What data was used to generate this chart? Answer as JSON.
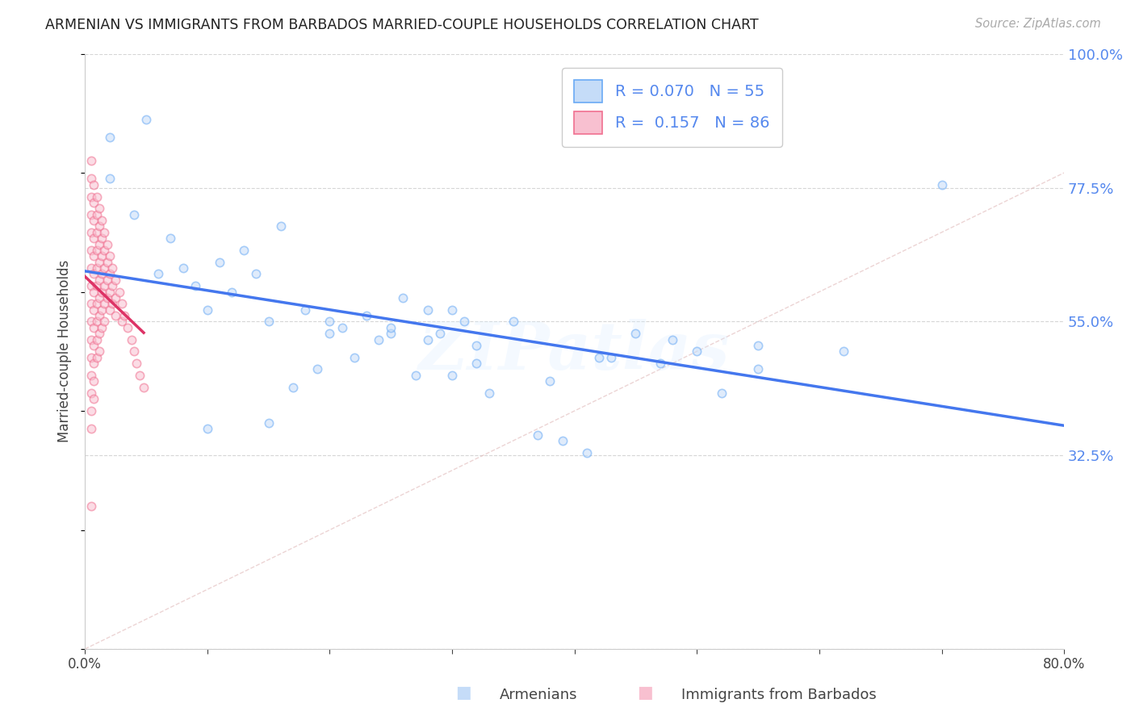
{
  "title": "ARMENIAN VS IMMIGRANTS FROM BARBADOS MARRIED-COUPLE HOUSEHOLDS CORRELATION CHART",
  "source": "Source: ZipAtlas.com",
  "xlabel_armenians": "Armenians",
  "xlabel_barbados": "Immigrants from Barbados",
  "ylabel": "Married-couple Households",
  "xmin": 0.0,
  "xmax": 0.8,
  "ymin": 0.0,
  "ymax": 1.0,
  "yticks": [
    0.0,
    0.325,
    0.55,
    0.775,
    1.0
  ],
  "ytick_labels": [
    "",
    "32.5%",
    "55.0%",
    "77.5%",
    "100.0%"
  ],
  "xticks": [
    0.0,
    0.1,
    0.2,
    0.3,
    0.4,
    0.5,
    0.6,
    0.7,
    0.8
  ],
  "xtick_labels": [
    "0.0%",
    "",
    "",
    "",
    "",
    "",
    "",
    "",
    "80.0%"
  ],
  "legend_R_armenian": "0.070",
  "legend_N_armenian": "55",
  "legend_R_barbados": "0.157",
  "legend_N_barbados": "86",
  "color_armenian_fill": "#c5dcf8",
  "color_armenian_edge": "#6aaaf5",
  "color_barbados_fill": "#f8c0d0",
  "color_barbados_edge": "#f07090",
  "color_line_armenian": "#4477ee",
  "color_line_barbados": "#dd3366",
  "color_diag": "#e0b8b8",
  "color_title": "#222222",
  "color_source": "#aaaaaa",
  "color_right_yticks": "#5588ee",
  "background": "#ffffff",
  "armenian_x": [
    0.02,
    0.02,
    0.04,
    0.05,
    0.06,
    0.07,
    0.08,
    0.09,
    0.1,
    0.11,
    0.12,
    0.13,
    0.14,
    0.15,
    0.16,
    0.17,
    0.18,
    0.19,
    0.2,
    0.21,
    0.22,
    0.23,
    0.24,
    0.25,
    0.26,
    0.27,
    0.28,
    0.29,
    0.3,
    0.31,
    0.32,
    0.33,
    0.35,
    0.37,
    0.39,
    0.41,
    0.43,
    0.45,
    0.47,
    0.5,
    0.52,
    0.55,
    0.3,
    0.25,
    0.2,
    0.28,
    0.32,
    0.38,
    0.42,
    0.48,
    0.55,
    0.62,
    0.7,
    0.15,
    0.1
  ],
  "armenian_y": [
    0.86,
    0.79,
    0.73,
    0.89,
    0.63,
    0.69,
    0.64,
    0.61,
    0.57,
    0.65,
    0.6,
    0.67,
    0.63,
    0.55,
    0.71,
    0.44,
    0.57,
    0.47,
    0.53,
    0.54,
    0.49,
    0.56,
    0.52,
    0.53,
    0.59,
    0.46,
    0.57,
    0.53,
    0.46,
    0.55,
    0.51,
    0.43,
    0.55,
    0.36,
    0.35,
    0.33,
    0.49,
    0.53,
    0.48,
    0.5,
    0.43,
    0.51,
    0.57,
    0.54,
    0.55,
    0.52,
    0.48,
    0.45,
    0.49,
    0.52,
    0.47,
    0.5,
    0.78,
    0.38,
    0.37
  ],
  "barbados_x": [
    0.005,
    0.005,
    0.005,
    0.005,
    0.005,
    0.005,
    0.005,
    0.005,
    0.005,
    0.005,
    0.005,
    0.005,
    0.005,
    0.005,
    0.005,
    0.005,
    0.005,
    0.007,
    0.007,
    0.007,
    0.007,
    0.007,
    0.007,
    0.007,
    0.007,
    0.007,
    0.007,
    0.007,
    0.007,
    0.007,
    0.01,
    0.01,
    0.01,
    0.01,
    0.01,
    0.01,
    0.01,
    0.01,
    0.01,
    0.01,
    0.012,
    0.012,
    0.012,
    0.012,
    0.012,
    0.012,
    0.012,
    0.012,
    0.012,
    0.014,
    0.014,
    0.014,
    0.014,
    0.014,
    0.014,
    0.014,
    0.016,
    0.016,
    0.016,
    0.016,
    0.016,
    0.016,
    0.018,
    0.018,
    0.018,
    0.018,
    0.02,
    0.02,
    0.02,
    0.02,
    0.022,
    0.022,
    0.022,
    0.025,
    0.025,
    0.025,
    0.028,
    0.03,
    0.03,
    0.032,
    0.035,
    0.038,
    0.04,
    0.042,
    0.045,
    0.048
  ],
  "barbados_y": [
    0.82,
    0.79,
    0.76,
    0.73,
    0.7,
    0.67,
    0.64,
    0.61,
    0.58,
    0.55,
    0.52,
    0.49,
    0.46,
    0.43,
    0.4,
    0.37,
    0.24,
    0.78,
    0.75,
    0.72,
    0.69,
    0.66,
    0.63,
    0.6,
    0.57,
    0.54,
    0.51,
    0.48,
    0.45,
    0.42,
    0.76,
    0.73,
    0.7,
    0.67,
    0.64,
    0.61,
    0.58,
    0.55,
    0.52,
    0.49,
    0.74,
    0.71,
    0.68,
    0.65,
    0.62,
    0.59,
    0.56,
    0.53,
    0.5,
    0.72,
    0.69,
    0.66,
    0.63,
    0.6,
    0.57,
    0.54,
    0.7,
    0.67,
    0.64,
    0.61,
    0.58,
    0.55,
    0.68,
    0.65,
    0.62,
    0.59,
    0.66,
    0.63,
    0.6,
    0.57,
    0.64,
    0.61,
    0.58,
    0.62,
    0.59,
    0.56,
    0.6,
    0.58,
    0.55,
    0.56,
    0.54,
    0.52,
    0.5,
    0.48,
    0.46,
    0.44
  ],
  "watermark": "ZIPatlas",
  "scatter_size": 55,
  "scatter_alpha": 0.55
}
